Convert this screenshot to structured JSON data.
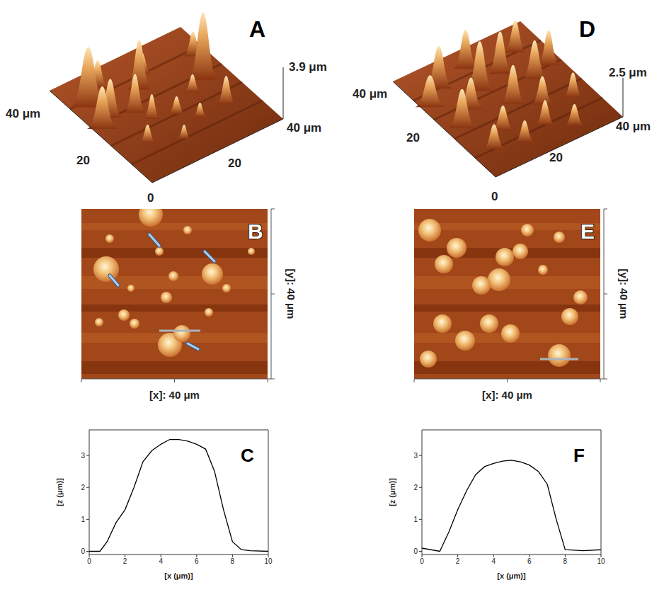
{
  "panels": [
    {
      "letter": "A",
      "height_label": "3.9 μm",
      "left_label": "40 μm",
      "right_label": "40 μm",
      "left_mid_label": "20",
      "right_mid_label": "20",
      "origin_label": "0"
    },
    {
      "letter": "D",
      "height_label": "2.5 μm",
      "left_label": "40 μm",
      "right_label": "40 μm",
      "left_mid_label": "20",
      "right_mid_label": "20",
      "origin_label": "0"
    }
  ],
  "maps": [
    {
      "letter": "B",
      "y_label": "[y]: 40 μm",
      "x_label": "[x]: 40 μm"
    },
    {
      "letter": "E",
      "y_label": "[y]: 40 μm",
      "x_label": "[x]: 40 μm"
    }
  ],
  "chart_data": [
    {
      "type": "line",
      "title": "C",
      "x_label": "[x (μm)]",
      "y_label": "[z (μm)]",
      "color": "#000000",
      "x": [
        0,
        0.6,
        1,
        1.5,
        2,
        2.5,
        3,
        3.5,
        4,
        4.5,
        5,
        5.5,
        6,
        6.5,
        7,
        7.5,
        8,
        8.5,
        9,
        10
      ],
      "values": [
        0,
        0,
        0.3,
        0.9,
        1.3,
        2.0,
        2.8,
        3.15,
        3.35,
        3.5,
        3.5,
        3.45,
        3.35,
        3.2,
        2.5,
        1.3,
        0.3,
        0.05,
        0.02,
        0
      ],
      "xlim": [
        0,
        10
      ],
      "xticks": [
        0,
        2,
        4,
        6,
        8,
        10
      ],
      "ylim": [
        -0.1,
        3.8
      ],
      "yticks": [
        0,
        1,
        2,
        3
      ]
    },
    {
      "type": "line",
      "title": "F",
      "x_label": "[x (μm)]",
      "y_label": "[z (μm)]",
      "color": "#000000",
      "x": [
        0,
        1,
        1.5,
        2,
        2.5,
        3,
        3.5,
        4,
        4.5,
        5,
        5.5,
        6,
        6.5,
        7,
        7.5,
        8,
        9,
        10
      ],
      "values": [
        0.1,
        0,
        0.6,
        1.3,
        1.9,
        2.4,
        2.65,
        2.75,
        2.82,
        2.85,
        2.8,
        2.7,
        2.5,
        2.1,
        1.0,
        0.05,
        0.02,
        0.05
      ],
      "xlim": [
        0,
        10
      ],
      "xticks": [
        0,
        2,
        4,
        6,
        8,
        10
      ],
      "ylim": [
        -0.1,
        3.8
      ],
      "yticks": [
        0,
        1,
        2,
        3
      ]
    }
  ]
}
